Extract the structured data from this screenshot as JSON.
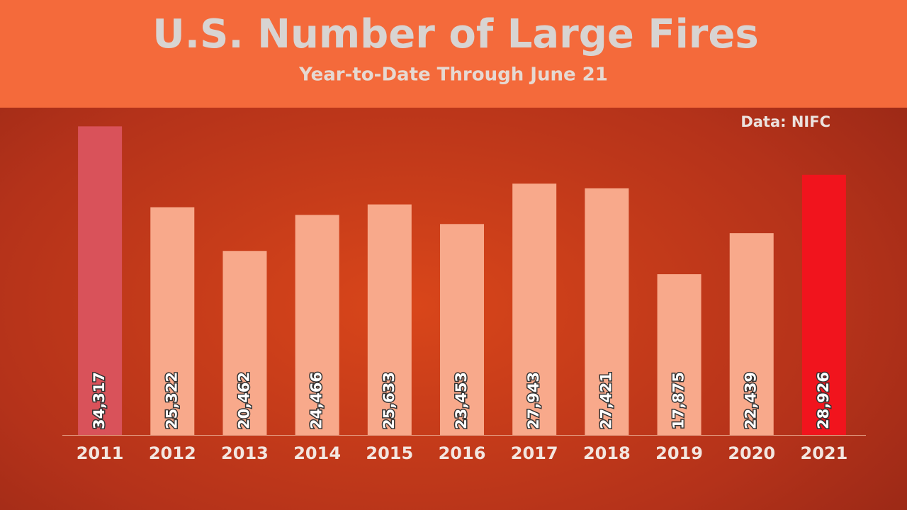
{
  "chart_data": {
    "type": "bar",
    "title": "U.S. Number of Large Fires",
    "subtitle": "Year-to-Date Through June 21",
    "source": "Data: NIFC",
    "categories": [
      "2011",
      "2012",
      "2013",
      "2014",
      "2015",
      "2016",
      "2017",
      "2018",
      "2019",
      "2020",
      "2021"
    ],
    "values": [
      34317,
      25322,
      20462,
      24466,
      25633,
      23453,
      27943,
      27421,
      17875,
      22439,
      28926
    ],
    "value_labels": [
      "34,317",
      "25,322",
      "20,462",
      "24,466",
      "25,633",
      "23,453",
      "27,943",
      "27,421",
      "17,875",
      "22,439",
      "28,926"
    ],
    "colors": [
      "#d9525a",
      "#f8a98b",
      "#f8a98b",
      "#f8a98b",
      "#f8a98b",
      "#f8a98b",
      "#f8a98b",
      "#f8a98b",
      "#f8a98b",
      "#f8a98b",
      "#f1141d"
    ],
    "ylim": [
      0,
      36000
    ]
  }
}
